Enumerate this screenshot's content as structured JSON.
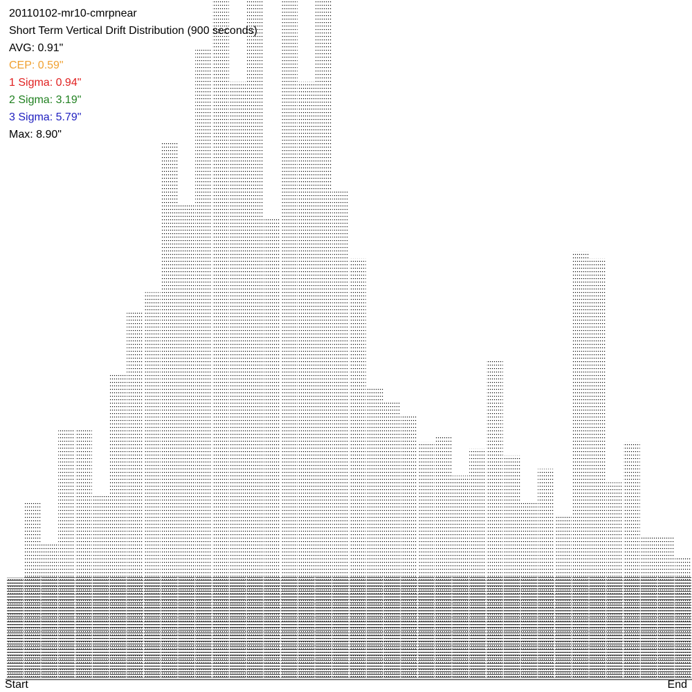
{
  "chart_data": {
    "type": "dot-distribution",
    "title": "20110102-mr10-cmrpnear",
    "subtitle": "Short Term Vertical Drift Distribution (900 seconds)",
    "stats": [
      {
        "text": "AVG: 0.91\"",
        "color": "#000000"
      },
      {
        "text": "CEP: 0.59\"",
        "color": "#f0a030"
      },
      {
        "text": "1 Sigma: 0.94\"",
        "color": "#e02020"
      },
      {
        "text": "2 Sigma: 3.19\"",
        "color": "#208020"
      },
      {
        "text": "3 Sigma: 5.79\"",
        "color": "#2020c0"
      },
      {
        "text": "Max: 8.90\"",
        "color": "#000000"
      }
    ],
    "x_start_label": "Start",
    "x_end_label": "End",
    "ylim": [
      0,
      100
    ],
    "color": "#000000",
    "values": [
      15,
      26,
      20,
      37,
      37,
      27,
      45,
      54,
      57,
      79,
      70,
      93,
      100,
      88,
      100,
      68,
      100,
      88,
      100,
      72,
      62,
      43,
      41,
      39,
      35,
      36,
      30,
      34,
      47,
      33,
      26,
      31,
      24,
      63,
      62,
      29,
      35,
      21,
      21,
      18
    ]
  }
}
